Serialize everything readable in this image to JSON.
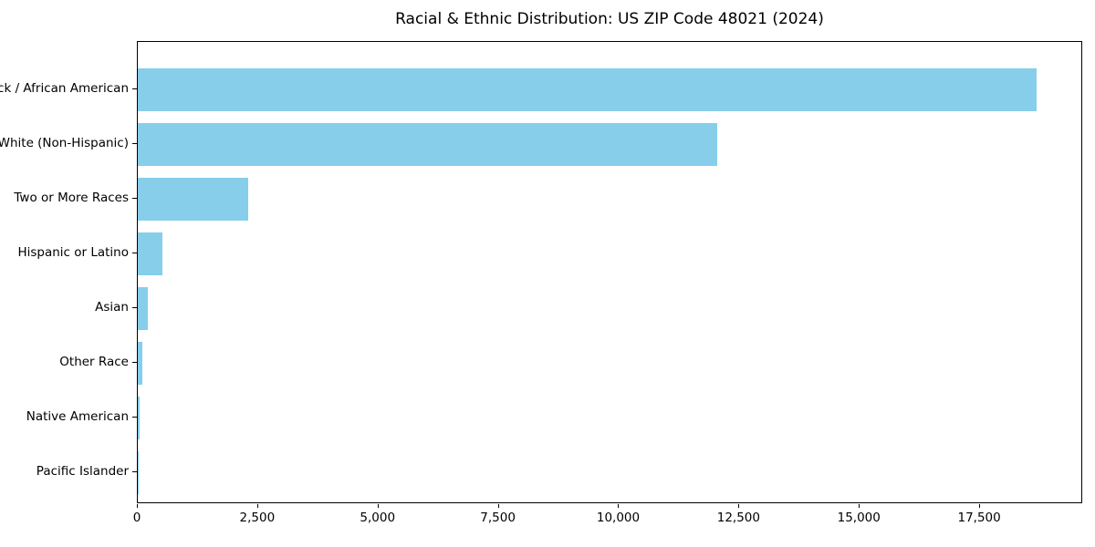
{
  "chart_data": {
    "type": "bar",
    "orientation": "horizontal",
    "title": "Racial & Ethnic Distribution: US ZIP Code 48021 (2024)",
    "xlabel": "",
    "ylabel": "",
    "categories": [
      "Black / African American",
      "White (Non-Hispanic)",
      "Two or More Races",
      "Hispanic or Latino",
      "Asian",
      "Other Race",
      "Native American",
      "Pacific Islander"
    ],
    "values": [
      18700,
      12060,
      2290,
      510,
      210,
      95,
      30,
      10
    ],
    "xlim": [
      0,
      19640
    ],
    "xticks": [
      0,
      2500,
      5000,
      7500,
      10000,
      12500,
      15000,
      17500
    ],
    "xtick_labels": [
      "0",
      "2,500",
      "5,000",
      "7,500",
      "10,000",
      "12,500",
      "15,000",
      "17,500"
    ],
    "bar_color": "#87CEEB",
    "background_color": "#ffffff",
    "spine_color": "#000000",
    "grid": false,
    "legend": null
  }
}
